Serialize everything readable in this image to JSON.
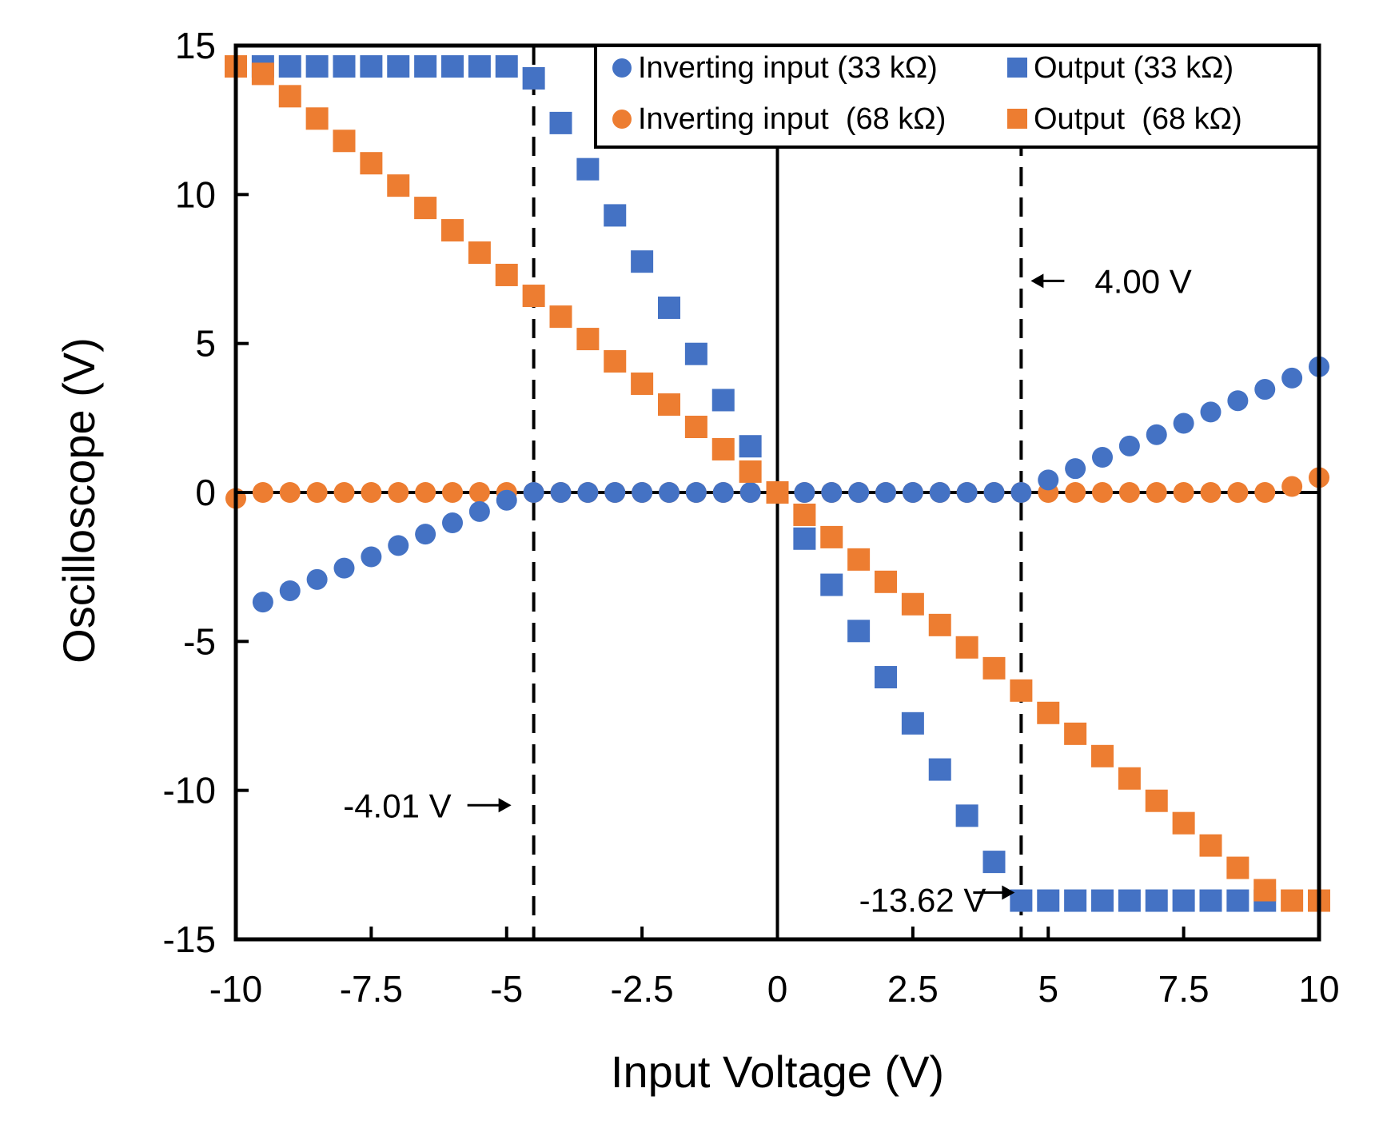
{
  "chart_data": {
    "type": "scatter",
    "title": "",
    "xlabel": "Input Voltage (V)",
    "ylabel": "Oscilloscope (V)",
    "xlim": [
      -10,
      10
    ],
    "ylim": [
      -15,
      15
    ],
    "x_ticks": [
      -10,
      -7.5,
      -5,
      -2.5,
      0,
      2.5,
      5,
      7.5,
      10
    ],
    "x_tick_labels": [
      "-10",
      "-7.5",
      "-5",
      "-2.5",
      "0",
      "2.5",
      "5",
      "7.5",
      "10"
    ],
    "y_ticks": [
      15,
      10,
      5,
      0,
      -5,
      -10,
      -15
    ],
    "y_tick_labels": [
      "15",
      "10",
      "5",
      "0",
      "-5",
      "-10",
      "-15"
    ],
    "grid": false,
    "legend_position": "top-right",
    "series": [
      {
        "name": "Inverting input (33 kΩ)",
        "marker": "circle",
        "color": "#4472C4",
        "x": [
          -9.5,
          -9,
          -8.5,
          -8,
          -7.5,
          -7,
          -6.5,
          -6,
          -5.5,
          -5,
          -4.5,
          -4,
          -3.5,
          -3,
          -2.5,
          -2,
          -1.5,
          -1,
          -0.5,
          0,
          0.5,
          1,
          1.5,
          2,
          2.5,
          3,
          3.5,
          4,
          4.5,
          5,
          5.5,
          6,
          6.5,
          7,
          7.5,
          8,
          8.5,
          9,
          9.5,
          10
        ],
        "y": [
          -3.68,
          -3.3,
          -2.92,
          -2.54,
          -2.16,
          -1.78,
          -1.4,
          -1.02,
          -0.64,
          -0.26,
          0,
          0,
          0,
          0,
          0,
          0,
          0,
          0,
          0,
          0,
          0,
          0,
          0,
          0,
          0,
          0,
          0,
          0,
          0,
          0.42,
          0.8,
          1.18,
          1.56,
          1.94,
          2.32,
          2.7,
          3.08,
          3.46,
          3.84,
          4.22
        ]
      },
      {
        "name": "Output (33 kΩ)",
        "marker": "square",
        "color": "#4472C4",
        "x": [
          -9.5,
          -9,
          -8.5,
          -8,
          -7.5,
          -7,
          -6.5,
          -6,
          -5.5,
          -5,
          -4.5,
          -4,
          -3.5,
          -3,
          -2.5,
          -2,
          -1.5,
          -1,
          -0.5,
          0,
          0.5,
          1,
          1.5,
          2,
          2.5,
          3,
          3.5,
          4,
          4.5,
          5,
          5.5,
          6,
          6.5,
          7,
          7.5,
          8,
          8.5,
          9
        ],
        "y": [
          14.3,
          14.3,
          14.3,
          14.3,
          14.3,
          14.3,
          14.3,
          14.3,
          14.3,
          14.3,
          13.9,
          12.4,
          10.85,
          9.3,
          7.75,
          6.2,
          4.65,
          3.1,
          1.55,
          0,
          -1.55,
          -3.1,
          -4.65,
          -6.2,
          -7.75,
          -9.3,
          -10.85,
          -12.4,
          -13.7,
          -13.7,
          -13.7,
          -13.7,
          -13.7,
          -13.7,
          -13.7,
          -13.7,
          -13.7,
          -13.7
        ]
      },
      {
        "name": "Inverting input  (68 kΩ)",
        "marker": "circle",
        "color": "#ED7D31",
        "x": [
          -10,
          -9.5,
          -9,
          -8.5,
          -8,
          -7.5,
          -7,
          -6.5,
          -6,
          -5.5,
          -5,
          -4.5,
          -4,
          -3.5,
          -3,
          -2.5,
          -2,
          -1.5,
          -1,
          -0.5,
          0,
          0.5,
          1,
          1.5,
          2,
          2.5,
          3,
          3.5,
          4,
          4.5,
          5,
          5.5,
          6,
          6.5,
          7,
          7.5,
          8,
          8.5,
          9,
          9.5,
          10
        ],
        "y": [
          -0.2,
          0,
          0,
          0,
          0,
          0,
          0,
          0,
          0,
          0,
          0,
          0,
          0,
          0,
          0,
          0,
          0,
          0,
          0,
          0,
          0,
          0,
          0,
          0,
          0,
          0,
          0,
          0,
          0,
          0,
          0,
          0,
          0,
          0,
          0,
          0,
          0,
          0,
          0,
          0.2,
          0.5
        ]
      },
      {
        "name": "Output  (68 kΩ)",
        "marker": "square",
        "color": "#ED7D31",
        "x": [
          -10,
          -9.5,
          -9,
          -8.5,
          -8,
          -7.5,
          -7,
          -6.5,
          -6,
          -5.5,
          -5,
          -4.5,
          -4,
          -3.5,
          -3,
          -2.5,
          -2,
          -1.5,
          -1,
          -0.5,
          0,
          0.5,
          1,
          1.5,
          2,
          2.5,
          3,
          3.5,
          4,
          4.5,
          5,
          5.5,
          6,
          6.5,
          7,
          7.5,
          8,
          8.5,
          9,
          9.5,
          10
        ],
        "y": [
          14.3,
          14.05,
          13.3,
          12.55,
          11.8,
          11.05,
          10.3,
          9.55,
          8.8,
          8.05,
          7.3,
          6.6,
          5.9,
          5.15,
          4.4,
          3.65,
          2.95,
          2.2,
          1.45,
          0.7,
          0,
          -0.75,
          -1.5,
          -2.25,
          -3,
          -3.75,
          -4.45,
          -5.2,
          -5.9,
          -6.65,
          -7.4,
          -8.1,
          -8.85,
          -9.6,
          -10.35,
          -11.1,
          -11.85,
          -12.6,
          -13.35,
          -13.7,
          -13.7
        ]
      }
    ],
    "reference_lines": [
      {
        "orientation": "vertical",
        "x": -4.5,
        "style": "dashed"
      },
      {
        "orientation": "vertical",
        "x": 4.5,
        "style": "dashed"
      },
      {
        "orientation": "vertical",
        "x": 0,
        "style": "solid"
      },
      {
        "orientation": "horizontal",
        "y": 0,
        "style": "solid"
      }
    ],
    "annotations": [
      {
        "text": "4.00 V",
        "arrow": "left",
        "x": 4.5,
        "y": 7.1
      },
      {
        "text": "-4.01 V",
        "arrow": "right",
        "x": -4.5,
        "y": -10.5
      },
      {
        "text": "-13.62 V",
        "arrow": "right",
        "x": 4.5,
        "y": -13.7
      }
    ]
  }
}
